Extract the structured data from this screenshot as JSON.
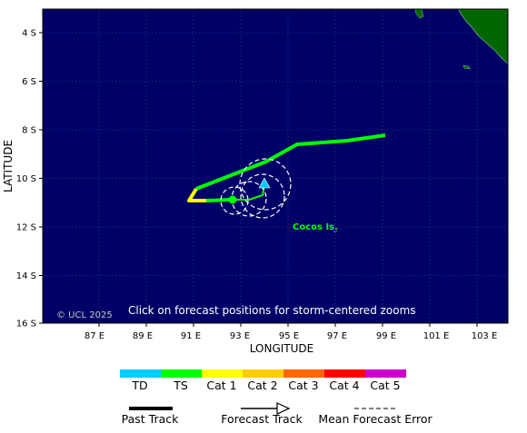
{
  "map": {
    "axis": {
      "y_label": "LATITUDE",
      "x_label": "LONGITUDE",
      "lat_ticks": [
        "4 S",
        "6 S",
        "8 S",
        "10 S",
        "12 S",
        "14 S",
        "16 S"
      ],
      "lon_ticks": [
        "87 E",
        "89 E",
        "91 E",
        "93 E",
        "95 E",
        "97 E",
        "99 E",
        "101 E",
        "103 E"
      ]
    },
    "place_label": "Cocos Is.",
    "copyright": "© UCL 2025",
    "hint": "Click on forecast positions for storm-centered zooms",
    "colors": {
      "ocean": "#000066",
      "land": "#006600",
      "grid": "#5a5a8a",
      "track_ts": "#00ff00",
      "track_cat1": "#ffff00"
    }
  },
  "legend": {
    "categories": [
      {
        "label": "TD",
        "color": "#00ccff"
      },
      {
        "label": "TS",
        "color": "#00ff00"
      },
      {
        "label": "Cat 1",
        "color": "#ffff00"
      },
      {
        "label": "Cat 2",
        "color": "#ffcc00"
      },
      {
        "label": "Cat 3",
        "color": "#ff6600"
      },
      {
        "label": "Cat 4",
        "color": "#ff0000"
      },
      {
        "label": "Cat 5",
        "color": "#cc00cc"
      }
    ],
    "past_track": "Past Track",
    "forecast_track": "Forecast Track",
    "mean_error": "Mean Forecast Error"
  }
}
